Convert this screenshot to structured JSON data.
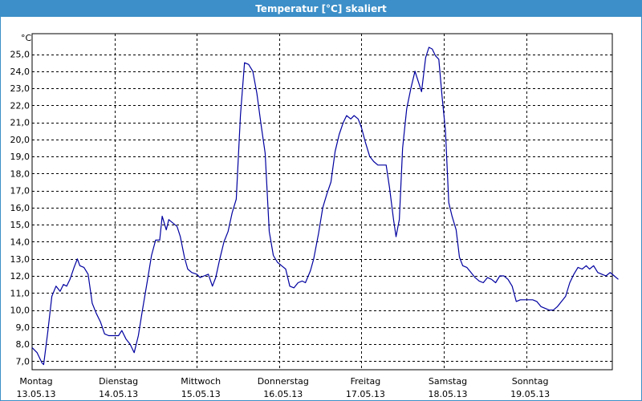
{
  "window": {
    "title": "Temperatur [°C] skaliert"
  },
  "colors": {
    "titlebar": "#3c8fc8",
    "line": "#0000a0",
    "grid": "#000000"
  },
  "chart_data": {
    "type": "line",
    "title": "Temperatur [°C] skaliert",
    "ylabel": "°C",
    "xlabel": "",
    "ylim": [
      6.5,
      26.2
    ],
    "xlim": [
      0,
      7.0
    ],
    "grid": true,
    "y_ticks": [
      "7,0",
      "8,0",
      "9,0",
      "10,0",
      "11,0",
      "12,0",
      "13,0",
      "14,0",
      "15,0",
      "16,0",
      "17,0",
      "18,0",
      "19,0",
      "20,0",
      "21,0",
      "22,0",
      "23,0",
      "24,0",
      "25,0"
    ],
    "y_tick_values": [
      7,
      8,
      9,
      10,
      11,
      12,
      13,
      14,
      15,
      16,
      17,
      18,
      19,
      20,
      21,
      22,
      23,
      24,
      25
    ],
    "x_ticks": [
      {
        "day": "Montag",
        "date": "13.05.13"
      },
      {
        "day": "Dienstag",
        "date": "14.05.13"
      },
      {
        "day": "Mittwoch",
        "date": "15.05.13"
      },
      {
        "day": "Donnerstag",
        "date": "16.05.13"
      },
      {
        "day": "Freitag",
        "date": "17.05.13"
      },
      {
        "day": "Samstag",
        "date": "18.05.13"
      },
      {
        "day": "Sonntag",
        "date": "19.05.13"
      }
    ],
    "x_tick_values": [
      0,
      1,
      2,
      3,
      4,
      5,
      6
    ],
    "series": [
      {
        "values": [
          [
            0.0,
            7.8
          ],
          [
            0.06,
            7.5
          ],
          [
            0.12,
            6.9
          ],
          [
            0.14,
            6.8
          ],
          [
            0.19,
            8.7
          ],
          [
            0.24,
            10.8
          ],
          [
            0.29,
            11.4
          ],
          [
            0.34,
            11.1
          ],
          [
            0.38,
            11.5
          ],
          [
            0.42,
            11.4
          ],
          [
            0.46,
            11.8
          ],
          [
            0.51,
            12.5
          ],
          [
            0.55,
            13.0
          ],
          [
            0.58,
            12.6
          ],
          [
            0.63,
            12.5
          ],
          [
            0.68,
            12.1
          ],
          [
            0.73,
            10.4
          ],
          [
            0.78,
            9.8
          ],
          [
            0.83,
            9.3
          ],
          [
            0.88,
            8.6
          ],
          [
            0.93,
            8.5
          ],
          [
            1.0,
            8.5
          ],
          [
            1.05,
            8.5
          ],
          [
            1.09,
            8.8
          ],
          [
            1.14,
            8.3
          ],
          [
            1.19,
            8.0
          ],
          [
            1.24,
            7.5
          ],
          [
            1.29,
            8.5
          ],
          [
            1.34,
            10.0
          ],
          [
            1.4,
            11.7
          ],
          [
            1.45,
            13.2
          ],
          [
            1.5,
            14.1
          ],
          [
            1.55,
            14.1
          ],
          [
            1.58,
            15.5
          ],
          [
            1.63,
            14.7
          ],
          [
            1.66,
            15.3
          ],
          [
            1.71,
            15.1
          ],
          [
            1.76,
            14.9
          ],
          [
            1.8,
            14.3
          ],
          [
            1.85,
            13.1
          ],
          [
            1.89,
            12.4
          ],
          [
            1.94,
            12.2
          ],
          [
            2.0,
            12.1
          ],
          [
            2.04,
            11.9
          ],
          [
            2.09,
            12.0
          ],
          [
            2.14,
            12.1
          ],
          [
            2.19,
            11.4
          ],
          [
            2.23,
            11.9
          ],
          [
            2.28,
            13.0
          ],
          [
            2.33,
            14.0
          ],
          [
            2.38,
            14.6
          ],
          [
            2.43,
            15.7
          ],
          [
            2.48,
            16.5
          ],
          [
            2.53,
            21.4
          ],
          [
            2.58,
            24.5
          ],
          [
            2.63,
            24.4
          ],
          [
            2.68,
            24.0
          ],
          [
            2.73,
            22.7
          ],
          [
            2.78,
            20.9
          ],
          [
            2.83,
            19.2
          ],
          [
            2.88,
            14.6
          ],
          [
            2.93,
            13.2
          ],
          [
            2.98,
            12.8
          ],
          [
            3.03,
            12.6
          ],
          [
            3.08,
            12.4
          ],
          [
            3.13,
            11.4
          ],
          [
            3.18,
            11.3
          ],
          [
            3.23,
            11.6
          ],
          [
            3.28,
            11.7
          ],
          [
            3.32,
            11.6
          ],
          [
            3.38,
            12.3
          ],
          [
            3.42,
            13.0
          ],
          [
            3.48,
            14.5
          ],
          [
            3.53,
            16.0
          ],
          [
            3.58,
            16.8
          ],
          [
            3.63,
            17.5
          ],
          [
            3.68,
            19.3
          ],
          [
            3.73,
            20.3
          ],
          [
            3.78,
            21.0
          ],
          [
            3.82,
            21.4
          ],
          [
            3.87,
            21.2
          ],
          [
            3.91,
            21.4
          ],
          [
            3.96,
            21.2
          ],
          [
            4.0,
            20.7
          ],
          [
            4.05,
            19.8
          ],
          [
            4.1,
            19.0
          ],
          [
            4.15,
            18.7
          ],
          [
            4.2,
            18.5
          ],
          [
            4.25,
            18.5
          ],
          [
            4.3,
            18.5
          ],
          [
            4.34,
            17.2
          ],
          [
            4.39,
            15.3
          ],
          [
            4.42,
            14.3
          ],
          [
            4.46,
            15.3
          ],
          [
            4.5,
            19.5
          ],
          [
            4.55,
            21.8
          ],
          [
            4.6,
            23.0
          ],
          [
            4.65,
            24.0
          ],
          [
            4.69,
            23.4
          ],
          [
            4.73,
            22.8
          ],
          [
            4.78,
            24.8
          ],
          [
            4.82,
            25.4
          ],
          [
            4.86,
            25.3
          ],
          [
            4.9,
            24.9
          ],
          [
            4.94,
            24.7
          ],
          [
            4.98,
            22.5
          ],
          [
            5.02,
            20.5
          ],
          [
            5.06,
            16.3
          ],
          [
            5.1,
            15.5
          ],
          [
            5.15,
            14.7
          ],
          [
            5.19,
            13.1
          ],
          [
            5.23,
            12.6
          ],
          [
            5.28,
            12.5
          ],
          [
            5.33,
            12.2
          ],
          [
            5.38,
            11.9
          ],
          [
            5.43,
            11.7
          ],
          [
            5.48,
            11.6
          ],
          [
            5.53,
            11.9
          ],
          [
            5.58,
            11.8
          ],
          [
            5.63,
            11.6
          ],
          [
            5.68,
            12.0
          ],
          [
            5.73,
            12.0
          ],
          [
            5.78,
            11.8
          ],
          [
            5.83,
            11.4
          ],
          [
            5.88,
            10.5
          ],
          [
            5.93,
            10.6
          ],
          [
            5.98,
            10.6
          ],
          [
            6.03,
            10.6
          ],
          [
            6.08,
            10.6
          ],
          [
            6.13,
            10.5
          ],
          [
            6.18,
            10.2
          ],
          [
            6.23,
            10.1
          ],
          [
            6.28,
            10.0
          ],
          [
            6.33,
            10.0
          ],
          [
            6.38,
            10.2
          ],
          [
            6.43,
            10.5
          ],
          [
            6.48,
            10.8
          ],
          [
            6.53,
            11.6
          ],
          [
            6.58,
            12.1
          ],
          [
            6.63,
            12.5
          ],
          [
            6.68,
            12.4
          ],
          [
            6.73,
            12.6
          ],
          [
            6.77,
            12.4
          ],
          [
            6.82,
            12.6
          ],
          [
            6.87,
            12.2
          ],
          [
            6.92,
            12.1
          ],
          [
            6.97,
            12.0
          ],
          [
            7.02,
            12.2
          ],
          [
            7.07,
            12.0
          ],
          [
            7.12,
            11.8
          ]
        ]
      }
    ]
  }
}
